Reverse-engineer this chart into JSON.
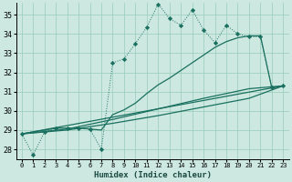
{
  "xlabel": "Humidex (Indice chaleur)",
  "background_color": "#cce8e0",
  "grid_color": "#99ccbb",
  "line_color": "#1a7060",
  "xlim": [
    -0.5,
    23.5
  ],
  "ylim": [
    27.5,
    35.6
  ],
  "xticks": [
    0,
    1,
    2,
    3,
    4,
    5,
    6,
    7,
    8,
    9,
    10,
    11,
    12,
    13,
    14,
    15,
    16,
    17,
    18,
    19,
    20,
    21,
    22,
    23
  ],
  "yticks": [
    28,
    29,
    30,
    31,
    32,
    33,
    34,
    35
  ],
  "main_x": [
    0,
    1,
    2,
    3,
    4,
    5,
    6,
    7,
    8,
    9,
    10,
    11,
    12,
    13,
    14,
    15,
    16,
    17,
    18,
    19,
    20,
    21,
    22,
    23
  ],
  "main_y": [
    28.8,
    27.7,
    28.9,
    29.1,
    29.1,
    29.1,
    29.05,
    28.0,
    32.5,
    32.7,
    33.5,
    34.35,
    35.55,
    34.8,
    34.45,
    35.25,
    34.2,
    33.55,
    34.45,
    34.0,
    33.85,
    33.85,
    31.2,
    31.3
  ],
  "solid1_x": [
    0,
    3,
    4,
    5,
    6,
    7,
    8,
    9,
    10,
    11,
    12,
    13,
    14,
    15,
    16,
    17,
    18,
    19,
    20,
    21,
    22,
    23
  ],
  "solid1_y": [
    28.8,
    29.1,
    29.1,
    29.1,
    29.05,
    29.0,
    29.8,
    30.05,
    30.4,
    30.9,
    31.35,
    31.7,
    32.1,
    32.5,
    32.9,
    33.3,
    33.6,
    33.8,
    33.9,
    33.9,
    31.2,
    31.3
  ],
  "trend1_x": [
    0,
    23
  ],
  "trend1_y": [
    28.8,
    31.3
  ],
  "trend2_x": [
    0,
    4,
    8,
    12,
    16,
    20,
    23
  ],
  "trend2_y": [
    28.8,
    29.05,
    29.55,
    30.1,
    30.65,
    31.15,
    31.3
  ],
  "trend3_x": [
    0,
    4,
    8,
    12,
    16,
    20,
    23
  ],
  "trend3_y": [
    28.8,
    29.0,
    29.35,
    29.75,
    30.2,
    30.65,
    31.3
  ]
}
